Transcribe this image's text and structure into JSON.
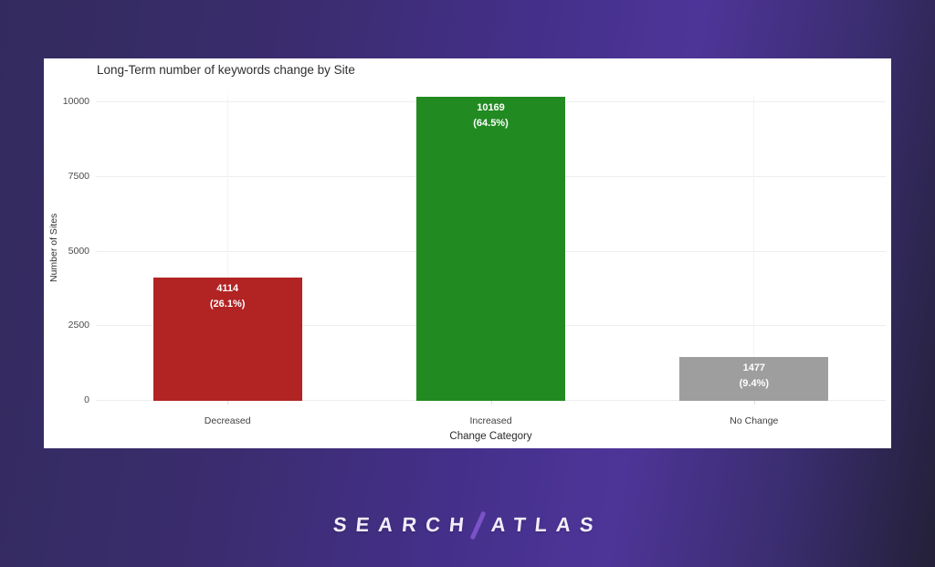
{
  "page": {
    "background_gradient": [
      "#332b5e",
      "#3a2c6d",
      "#44308a",
      "#4d3598",
      "#232038"
    ],
    "panel_color": "#ffffff"
  },
  "chart_data": {
    "type": "bar",
    "title": "Long-Term number of keywords change by Site",
    "xlabel": "Change Category",
    "ylabel": "Number of Sites",
    "categories": [
      "Decreased",
      "Increased",
      "No Change"
    ],
    "values": [
      4114,
      10169,
      1477
    ],
    "value_labels": [
      "4114",
      "10169",
      "1477"
    ],
    "percent_labels": [
      "(26.1%)",
      "(64.5%)",
      "(9.4%)"
    ],
    "bar_colors": [
      "#b22323",
      "#218a21",
      "#9e9e9e"
    ],
    "label_color": "#ffffff",
    "yticks": [
      0,
      2500,
      5000,
      7500,
      10000
    ],
    "ytick_labels": [
      "0",
      "2500",
      "5000",
      "7500",
      "10000"
    ],
    "ylim": [
      0,
      10250
    ],
    "grid": true,
    "legend": "none"
  },
  "logo": {
    "part1": "SEARCH",
    "part2": "ATLAS",
    "text_color": "#f1edfb",
    "slash_color": "#7b52c7"
  }
}
